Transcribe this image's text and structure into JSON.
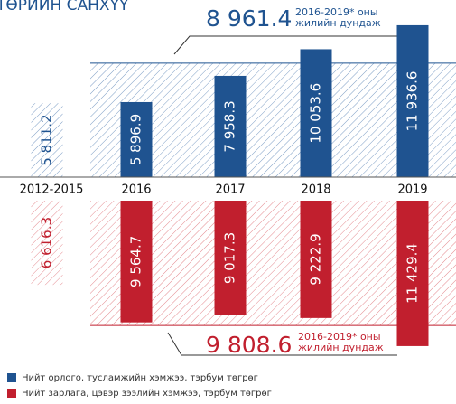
{
  "chart_data": {
    "type": "diverging_bar",
    "title": "ТӨРИЙН САНХҮҮ",
    "categories": [
      "2012-2015",
      "2016",
      "2017",
      "2018",
      "2019"
    ],
    "hatched": [
      true,
      false,
      false,
      false,
      false
    ],
    "series": [
      {
        "name": "Нийт орлого, тусламжийн хэмжээ, тэрбум төгрөг",
        "color": "#1f5390",
        "direction": "up",
        "values": [
          5811.2,
          5896.9,
          7958.3,
          10053.6,
          11936.6
        ],
        "value_labels": [
          "5 811.2",
          "5 896.9",
          "7 958.3",
          "10 053.6",
          "11 936.6"
        ]
      },
      {
        "name": "Нийт зарлага, цэвэр зээлийн хэмжээ, тэрбум төгрөг",
        "color": "#c11f2e",
        "direction": "down",
        "values": [
          6616.3,
          9564.7,
          9017.3,
          9222.9,
          11429.4
        ],
        "value_labels": [
          "6 616.3",
          "9 564.7",
          "9 017.3",
          "9 222.9",
          "11 429.4"
        ]
      }
    ],
    "averages": [
      {
        "series": 0,
        "value": 8961.4,
        "label": "8 961.4",
        "note": [
          "2016-2019* оны",
          "жилийн дундаж"
        ]
      },
      {
        "series": 1,
        "value": 9808.6,
        "label": "9 808.6",
        "note": [
          "2016-2019* оны",
          "жилийн дундаж"
        ]
      }
    ]
  }
}
